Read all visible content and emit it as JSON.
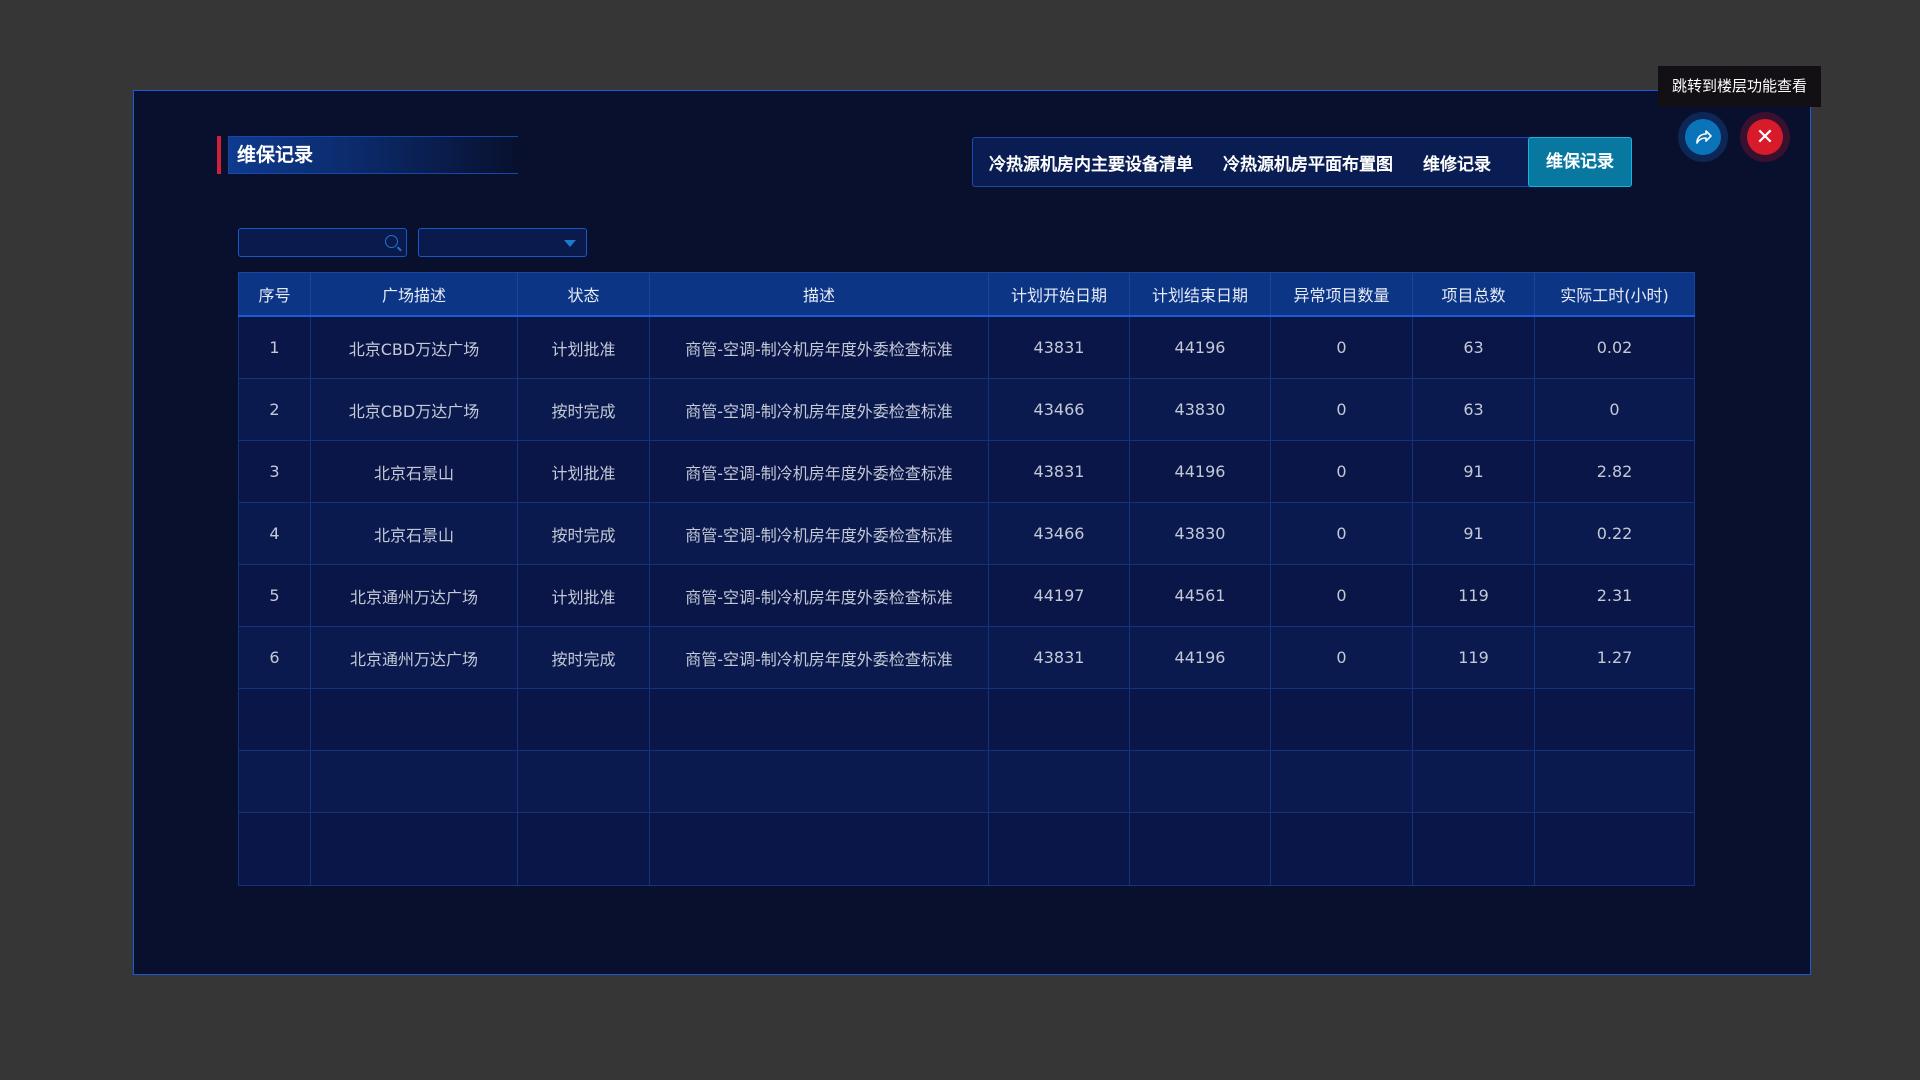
{
  "panel": {
    "title": "维保记录"
  },
  "tabs": [
    {
      "label": "冷热源机房内主要设备清单",
      "active": false
    },
    {
      "label": "冷热源机房平面布置图",
      "active": false
    },
    {
      "label": "维修记录",
      "active": false
    },
    {
      "label": "维保记录",
      "active": true
    }
  ],
  "tooltip": "跳转到楼层功能查看",
  "actions": {
    "share_icon": "share-arrow-icon",
    "close_icon": "close-icon",
    "close_glyph": "✕"
  },
  "filters": {
    "search_value": "",
    "search_placeholder": "",
    "select_value": ""
  },
  "table": {
    "columns": [
      "序号",
      "广场描述",
      "状态",
      "描述",
      "计划开始日期",
      "计划结束日期",
      "异常项目数量",
      "项目总数",
      "实际工时(小时)"
    ],
    "rows": [
      [
        "1",
        "北京CBD万达广场",
        "计划批准",
        "商管-空调-制冷机房年度外委检查标准",
        "43831",
        "44196",
        "0",
        "63",
        "0.02"
      ],
      [
        "2",
        "北京CBD万达广场",
        "按时完成",
        "商管-空调-制冷机房年度外委检查标准",
        "43466",
        "43830",
        "0",
        "63",
        "0"
      ],
      [
        "3",
        "北京石景山",
        "计划批准",
        "商管-空调-制冷机房年度外委检查标准",
        "43831",
        "44196",
        "0",
        "91",
        "2.82"
      ],
      [
        "4",
        "北京石景山",
        "按时完成",
        "商管-空调-制冷机房年度外委检查标准",
        "43466",
        "43830",
        "0",
        "91",
        "0.22"
      ],
      [
        "5",
        "北京通州万达广场",
        "计划批准",
        "商管-空调-制冷机房年度外委检查标准",
        "44197",
        "44561",
        "0",
        "119",
        "2.31"
      ],
      [
        "6",
        "北京通州万达广场",
        "按时完成",
        "商管-空调-制冷机房年度外委检查标准",
        "43831",
        "44196",
        "0",
        "119",
        "1.27"
      ]
    ]
  },
  "colors": {
    "accent": "#1a5ad6",
    "active_tab": "#0878a0",
    "close": "#d81b2a",
    "title_marker": "#d0203a"
  }
}
